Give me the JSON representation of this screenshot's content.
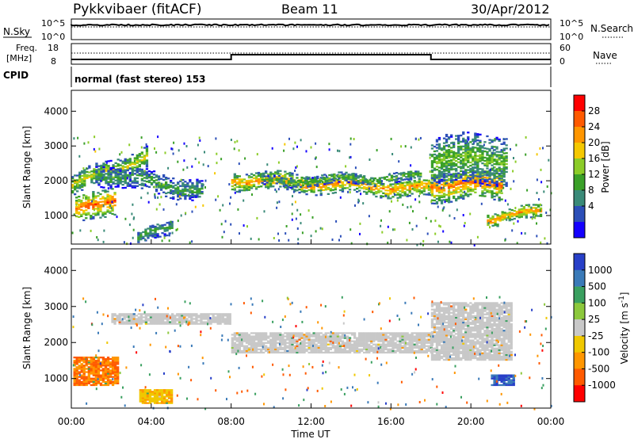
{
  "header": {
    "station": "Pykkvibaer (fitACF)",
    "beam": "Beam 11",
    "date": "30/Apr/2012"
  },
  "panels": {
    "nsky": {
      "left_label": "N.Sky",
      "tick_top": "10^5",
      "tick_bottom": "10^0",
      "right_label": "N.Search",
      "right_tick_top": "10^5",
      "right_tick_bottom": "10^0"
    },
    "freq": {
      "left_label_1": "Freq.",
      "left_label_2": "[MHz]",
      "tick_top": "18",
      "tick_bottom": "8",
      "right_label": "Nave",
      "right_tick_top": "60",
      "right_tick_bottom": "0"
    },
    "cpid": {
      "label": "CPID",
      "mode": "normal (fast stereo) 153"
    },
    "power": {
      "ylabel": "Slant Range [km]",
      "colorbar_label": "Power [dB]",
      "colorbar_ticks": [
        "28",
        "24",
        "20",
        "16",
        "12",
        "8",
        "4"
      ],
      "colorbar_colors": [
        "#ff0000",
        "#ff5a00",
        "#ff9600",
        "#f5c800",
        "#8ccc28",
        "#3aa028",
        "#3a8a78",
        "#2c4fb8",
        "#1400ff"
      ]
    },
    "velocity": {
      "ylabel": "Slant Range [km]",
      "colorbar_label": "Velocity [m s^-1]",
      "colorbar_ticks": [
        "1000",
        "500",
        "100",
        "25",
        "-25",
        "-100",
        "-500",
        "-1000"
      ],
      "colorbar_colors": [
        "#2840c8",
        "#3a7ab8",
        "#3aa060",
        "#8cc83c",
        "#c8c8c8",
        "#f0c800",
        "#ff9600",
        "#ff5a00",
        "#ff0000"
      ]
    }
  },
  "chart_data": {
    "type": "heatmap",
    "xlabel": "Time UT",
    "x_ticks": [
      "00:00",
      "04:00",
      "08:00",
      "12:00",
      "16:00",
      "20:00",
      "00:00"
    ],
    "xlim_hours": [
      0,
      24
    ],
    "ylim_km": [
      180,
      4600
    ],
    "y_ticks": [
      1000,
      2000,
      3000,
      4000
    ],
    "power_bands": [
      {
        "t0": 0.0,
        "t1": 3.8,
        "r_start": 1850,
        "r_end": 2700,
        "width": 300,
        "power": 18
      },
      {
        "t0": 0.2,
        "t1": 2.2,
        "r_start": 1100,
        "r_end": 1500,
        "width": 400,
        "power": 26
      },
      {
        "t0": 1.2,
        "t1": 6.5,
        "r_start": 2200,
        "r_end": 1700,
        "width": 300,
        "power": 12
      },
      {
        "t0": 8.0,
        "t1": 18.0,
        "r_start": 2000,
        "r_end": 1750,
        "width": 250,
        "power": 24
      },
      {
        "t0": 9.5,
        "t1": 17.5,
        "r_start": 1950,
        "r_end": 2100,
        "width": 150,
        "power": 14
      },
      {
        "t0": 18.0,
        "t1": 21.5,
        "r_start": 1850,
        "r_end": 1900,
        "width": 450,
        "power": 25
      },
      {
        "t0": 18.0,
        "t1": 21.8,
        "r_start": 2600,
        "r_end": 2600,
        "width": 700,
        "power": 15
      },
      {
        "t0": 20.8,
        "t1": 23.5,
        "r_start": 900,
        "r_end": 1100,
        "width": 200,
        "power": 24
      },
      {
        "t0": 3.3,
        "t1": 5.0,
        "r_start": 300,
        "r_end": 700,
        "width": 200,
        "power": 12
      }
    ],
    "velocity_regions": [
      {
        "t0": 0.1,
        "t1": 2.3,
        "r_start": 800,
        "r_end": 1600,
        "velocity": -500
      },
      {
        "t0": 3.4,
        "t1": 5.0,
        "r_start": 300,
        "r_end": 700,
        "velocity": -100
      },
      {
        "t0": 2.0,
        "t1": 8.0,
        "r_start": 2500,
        "r_end": 2800,
        "velocity": 0
      },
      {
        "t0": 8.0,
        "t1": 18.0,
        "r_start": 1700,
        "r_end": 2250,
        "velocity": 0
      },
      {
        "t0": 18.0,
        "t1": 22.0,
        "r_start": 1500,
        "r_end": 3100,
        "velocity": 0
      },
      {
        "t0": 21.0,
        "t1": 22.2,
        "r_start": 800,
        "r_end": 1100,
        "velocity": 1000
      }
    ],
    "cpid_breaks_hours": [
      8.0,
      18.0
    ]
  }
}
